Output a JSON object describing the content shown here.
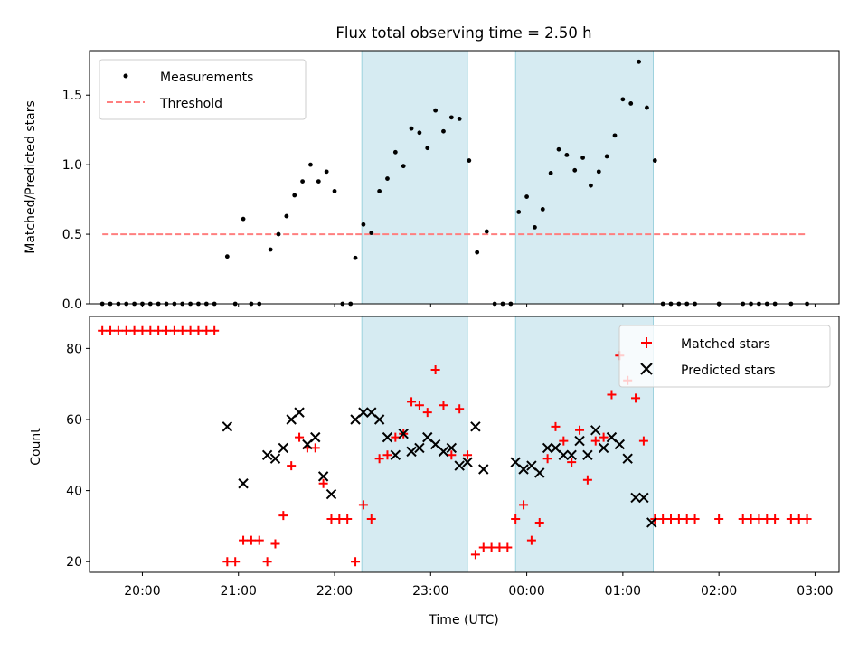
{
  "chart_data": [
    {
      "type": "scatter",
      "title": "Flux total observing time = 2.50 h",
      "ylabel": "Matched/Predicted stars",
      "xlabel": "",
      "xlim": [
        "19:27",
        "03:15"
      ],
      "ylim": [
        0,
        1.82
      ],
      "yticks": [
        "0.0",
        "0.5",
        "1.0",
        "1.5"
      ],
      "ytick_values": [
        0,
        0.5,
        1.0,
        1.5
      ],
      "grid": false,
      "legend_placement": "top-left",
      "legend": [
        {
          "label": "Measurements",
          "marker": "dot",
          "color": "#000000"
        },
        {
          "label": "Threshold",
          "marker": "dashed-line",
          "color": "#ff7f7f"
        }
      ],
      "threshold": {
        "value": 0.5,
        "x_range": [
          "19:35",
          "02:55"
        ]
      },
      "shaded_intervals": [
        [
          "22:17",
          "23:23"
        ],
        [
          "23:53",
          "01:19"
        ]
      ],
      "series": [
        {
          "name": "Measurements",
          "points": [
            [
              "19:35",
              0
            ],
            [
              "19:40",
              0
            ],
            [
              "19:45",
              0
            ],
            [
              "19:50",
              0
            ],
            [
              "19:55",
              0
            ],
            [
              "20:00",
              0
            ],
            [
              "20:05",
              0
            ],
            [
              "20:10",
              0
            ],
            [
              "20:15",
              0
            ],
            [
              "20:20",
              0
            ],
            [
              "20:25",
              0
            ],
            [
              "20:30",
              0
            ],
            [
              "20:35",
              0
            ],
            [
              "20:40",
              0
            ],
            [
              "20:45",
              0
            ],
            [
              "20:53",
              0.34
            ],
            [
              "20:58",
              0
            ],
            [
              "21:03",
              0.61
            ],
            [
              "21:08",
              0
            ],
            [
              "21:13",
              0
            ],
            [
              "21:20",
              0.39
            ],
            [
              "21:25",
              0.5
            ],
            [
              "21:30",
              0.63
            ],
            [
              "21:35",
              0.78
            ],
            [
              "21:40",
              0.88
            ],
            [
              "21:45",
              1.0
            ],
            [
              "21:50",
              0.88
            ],
            [
              "21:55",
              0.95
            ],
            [
              "22:00",
              0.81
            ],
            [
              "22:05",
              0
            ],
            [
              "22:10",
              0
            ],
            [
              "22:13",
              0.33
            ],
            [
              "22:18",
              0.57
            ],
            [
              "22:23",
              0.51
            ],
            [
              "22:28",
              0.81
            ],
            [
              "22:33",
              0.9
            ],
            [
              "22:38",
              1.09
            ],
            [
              "22:43",
              0.99
            ],
            [
              "22:48",
              1.26
            ],
            [
              "22:53",
              1.23
            ],
            [
              "22:58",
              1.12
            ],
            [
              "23:03",
              1.39
            ],
            [
              "23:08",
              1.24
            ],
            [
              "23:13",
              1.34
            ],
            [
              "23:18",
              1.33
            ],
            [
              "23:24",
              1.03
            ],
            [
              "23:29",
              0.37
            ],
            [
              "23:35",
              0.52
            ],
            [
              "23:40",
              0
            ],
            [
              "23:45",
              0
            ],
            [
              "23:50",
              0
            ],
            [
              "23:55",
              0.66
            ],
            [
              "00:00",
              0.77
            ],
            [
              "00:05",
              0.55
            ],
            [
              "00:10",
              0.68
            ],
            [
              "00:15",
              0.94
            ],
            [
              "00:20",
              1.11
            ],
            [
              "00:25",
              1.07
            ],
            [
              "00:30",
              0.96
            ],
            [
              "00:35",
              1.05
            ],
            [
              "00:40",
              0.85
            ],
            [
              "00:45",
              0.95
            ],
            [
              "00:50",
              1.06
            ],
            [
              "00:55",
              1.21
            ],
            [
              "01:00",
              1.47
            ],
            [
              "01:05",
              1.44
            ],
            [
              "01:10",
              1.74
            ],
            [
              "01:15",
              1.41
            ],
            [
              "01:20",
              1.03
            ],
            [
              "01:25",
              0
            ],
            [
              "01:30",
              0
            ],
            [
              "01:35",
              0
            ],
            [
              "01:40",
              0
            ],
            [
              "01:45",
              0
            ],
            [
              "02:00",
              0
            ],
            [
              "02:15",
              0
            ],
            [
              "02:20",
              0
            ],
            [
              "02:25",
              0
            ],
            [
              "02:30",
              0
            ],
            [
              "02:35",
              0
            ],
            [
              "02:45",
              0
            ],
            [
              "02:55",
              0
            ]
          ]
        }
      ]
    },
    {
      "type": "scatter",
      "title": "",
      "ylabel": "Count",
      "xlabel": "Time (UTC)",
      "xlim": [
        "19:27",
        "03:15"
      ],
      "ylim": [
        17,
        89
      ],
      "yticks": [
        "20",
        "40",
        "60",
        "80"
      ],
      "ytick_values": [
        20,
        40,
        60,
        80
      ],
      "xticks": [
        "20:00",
        "21:00",
        "22:00",
        "23:00",
        "00:00",
        "01:00",
        "02:00",
        "03:00"
      ],
      "grid": false,
      "legend_placement": "top-right",
      "legend": [
        {
          "label": "Matched stars",
          "marker": "plus",
          "color": "#ff0000"
        },
        {
          "label": "Predicted stars",
          "marker": "x",
          "color": "#000000"
        }
      ],
      "shaded_intervals": [
        [
          "22:17",
          "23:23"
        ],
        [
          "23:53",
          "01:19"
        ]
      ],
      "series": [
        {
          "name": "Matched stars",
          "points": [
            [
              "19:35",
              85
            ],
            [
              "19:40",
              85
            ],
            [
              "19:45",
              85
            ],
            [
              "19:50",
              85
            ],
            [
              "19:55",
              85
            ],
            [
              "20:00",
              85
            ],
            [
              "20:05",
              85
            ],
            [
              "20:10",
              85
            ],
            [
              "20:15",
              85
            ],
            [
              "20:20",
              85
            ],
            [
              "20:25",
              85
            ],
            [
              "20:30",
              85
            ],
            [
              "20:35",
              85
            ],
            [
              "20:40",
              85
            ],
            [
              "20:45",
              85
            ],
            [
              "20:53",
              20
            ],
            [
              "20:58",
              20
            ],
            [
              "21:03",
              26
            ],
            [
              "21:08",
              26
            ],
            [
              "21:13",
              26
            ],
            [
              "21:18",
              20
            ],
            [
              "21:23",
              25
            ],
            [
              "21:28",
              33
            ],
            [
              "21:33",
              47
            ],
            [
              "21:38",
              55
            ],
            [
              "21:43",
              52
            ],
            [
              "21:48",
              52
            ],
            [
              "21:53",
              42
            ],
            [
              "21:58",
              32
            ],
            [
              "22:03",
              32
            ],
            [
              "22:08",
              32
            ],
            [
              "22:13",
              20
            ],
            [
              "22:18",
              36
            ],
            [
              "22:23",
              32
            ],
            [
              "22:28",
              49
            ],
            [
              "22:33",
              50
            ],
            [
              "22:38",
              55
            ],
            [
              "22:43",
              56
            ],
            [
              "22:48",
              65
            ],
            [
              "22:53",
              64
            ],
            [
              "22:58",
              62
            ],
            [
              "23:03",
              74
            ],
            [
              "23:08",
              64
            ],
            [
              "23:13",
              50
            ],
            [
              "23:18",
              63
            ],
            [
              "23:23",
              50
            ],
            [
              "23:28",
              22
            ],
            [
              "23:33",
              24
            ],
            [
              "23:38",
              24
            ],
            [
              "23:43",
              24
            ],
            [
              "23:48",
              24
            ],
            [
              "23:53",
              32
            ],
            [
              "23:58",
              36
            ],
            [
              "00:03",
              26
            ],
            [
              "00:08",
              31
            ],
            [
              "00:13",
              49
            ],
            [
              "00:18",
              58
            ],
            [
              "00:23",
              54
            ],
            [
              "00:28",
              48
            ],
            [
              "00:33",
              57
            ],
            [
              "00:38",
              43
            ],
            [
              "00:43",
              54
            ],
            [
              "00:48",
              55
            ],
            [
              "00:53",
              67
            ],
            [
              "00:58",
              78
            ],
            [
              "01:03",
              71
            ],
            [
              "01:08",
              66
            ],
            [
              "01:13",
              54
            ],
            [
              "01:20",
              32
            ],
            [
              "01:25",
              32
            ],
            [
              "01:30",
              32
            ],
            [
              "01:35",
              32
            ],
            [
              "01:40",
              32
            ],
            [
              "01:45",
              32
            ],
            [
              "02:00",
              32
            ],
            [
              "02:15",
              32
            ],
            [
              "02:20",
              32
            ],
            [
              "02:25",
              32
            ],
            [
              "02:30",
              32
            ],
            [
              "02:35",
              32
            ],
            [
              "02:45",
              32
            ],
            [
              "02:50",
              32
            ],
            [
              "02:55",
              32
            ]
          ]
        },
        {
          "name": "Predicted stars",
          "points": [
            [
              "20:53",
              58
            ],
            [
              "21:03",
              42
            ],
            [
              "21:18",
              50
            ],
            [
              "21:23",
              49
            ],
            [
              "21:28",
              52
            ],
            [
              "21:33",
              60
            ],
            [
              "21:38",
              62
            ],
            [
              "21:43",
              53
            ],
            [
              "21:48",
              55
            ],
            [
              "21:53",
              44
            ],
            [
              "21:58",
              39
            ],
            [
              "22:13",
              60
            ],
            [
              "22:18",
              62
            ],
            [
              "22:23",
              62
            ],
            [
              "22:28",
              60
            ],
            [
              "22:33",
              55
            ],
            [
              "22:38",
              50
            ],
            [
              "22:43",
              56
            ],
            [
              "22:48",
              51
            ],
            [
              "22:53",
              52
            ],
            [
              "22:58",
              55
            ],
            [
              "23:03",
              53
            ],
            [
              "23:08",
              51
            ],
            [
              "23:13",
              52
            ],
            [
              "23:18",
              47
            ],
            [
              "23:23",
              48
            ],
            [
              "23:28",
              58
            ],
            [
              "23:33",
              46
            ],
            [
              "23:53",
              48
            ],
            [
              "23:58",
              46
            ],
            [
              "00:03",
              47
            ],
            [
              "00:08",
              45
            ],
            [
              "00:13",
              52
            ],
            [
              "00:18",
              52
            ],
            [
              "00:23",
              50
            ],
            [
              "00:28",
              50
            ],
            [
              "00:33",
              54
            ],
            [
              "00:38",
              50
            ],
            [
              "00:43",
              57
            ],
            [
              "00:48",
              52
            ],
            [
              "00:53",
              55
            ],
            [
              "00:58",
              53
            ],
            [
              "01:03",
              49
            ],
            [
              "01:08",
              38
            ],
            [
              "01:13",
              38
            ],
            [
              "01:18",
              31
            ]
          ]
        }
      ]
    }
  ]
}
